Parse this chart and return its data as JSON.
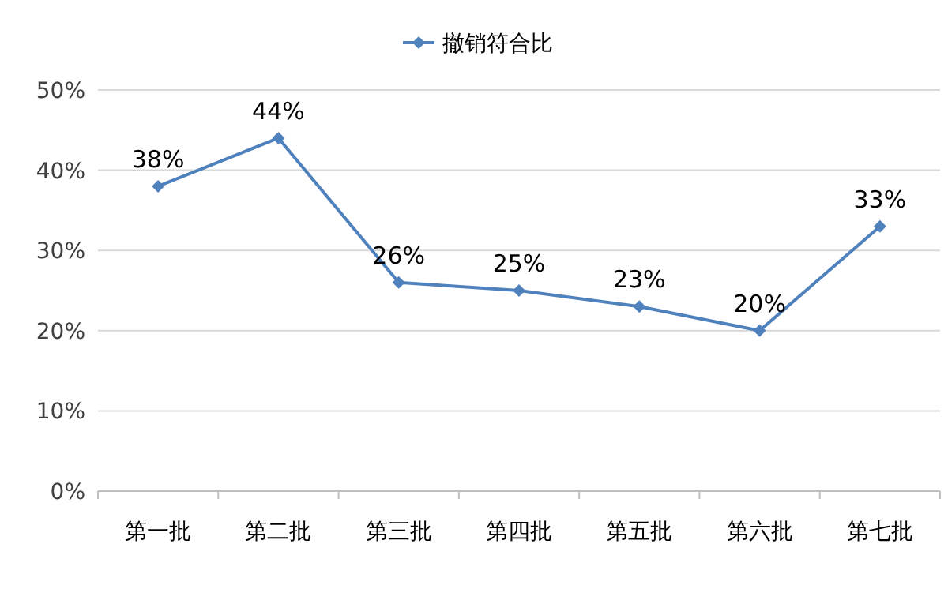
{
  "chart_data": {
    "type": "line",
    "categories": [
      "第一批",
      "第二批",
      "第三批",
      "第四批",
      "第五批",
      "第六批",
      "第七批"
    ],
    "series": [
      {
        "name": "撤销符合比",
        "color": "#4f81bd",
        "values": [
          38,
          44,
          26,
          25,
          23,
          20,
          33
        ]
      }
    ],
    "ylim": [
      0,
      50
    ],
    "yticks": [
      {
        "value": 0,
        "label": "0%"
      },
      {
        "value": 10,
        "label": "10%"
      },
      {
        "value": 20,
        "label": "20%"
      },
      {
        "value": 30,
        "label": "30%"
      },
      {
        "value": 40,
        "label": "40%"
      },
      {
        "value": 50,
        "label": "50%"
      }
    ],
    "value_labels": [
      "38%",
      "44%",
      "26%",
      "25%",
      "23%",
      "20%",
      "33%"
    ],
    "grid": "y",
    "legend": "top",
    "marker": "diamond",
    "line_style": "solid"
  }
}
